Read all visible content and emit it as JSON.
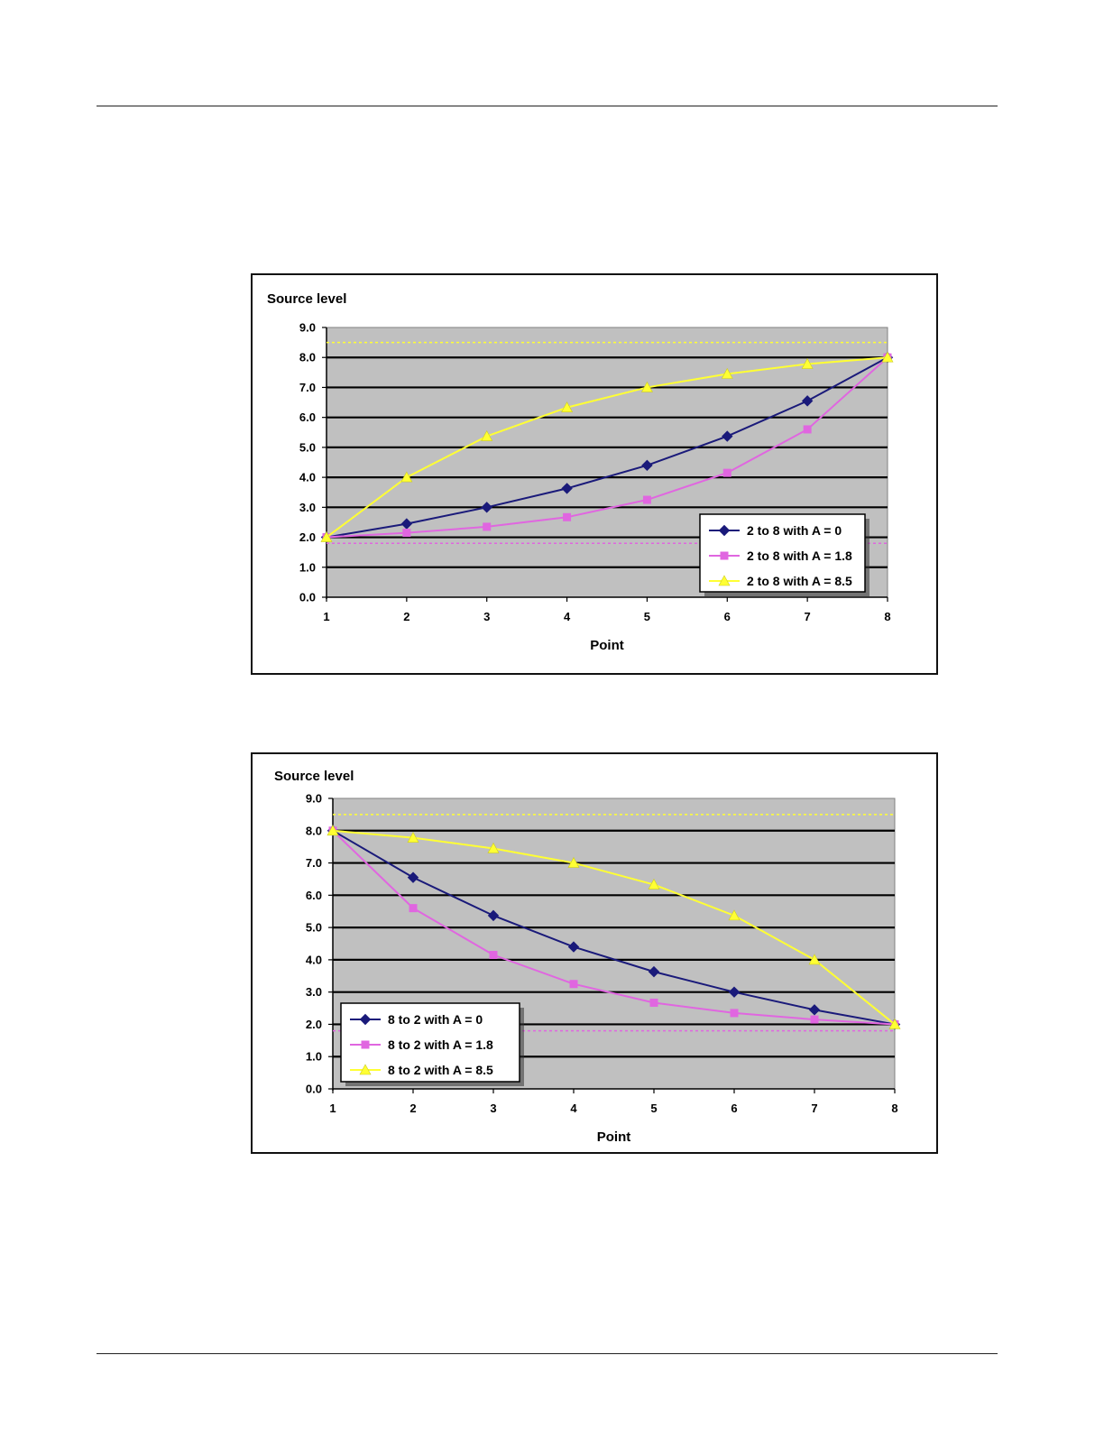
{
  "chart_data": [
    {
      "type": "line",
      "ylabel": "Source level",
      "xlabel": "Point",
      "x": [
        1,
        2,
        3,
        4,
        5,
        6,
        7,
        8
      ],
      "ylim": [
        0,
        9
      ],
      "yticks": [
        "0.0",
        "1.0",
        "2.0",
        "3.0",
        "4.0",
        "5.0",
        "6.0",
        "7.0",
        "8.0",
        "9.0"
      ],
      "grid": true,
      "legend": "bottom-right",
      "reference_lines": [
        {
          "y": 8.5,
          "color": "#ffff33"
        },
        {
          "y": 1.8,
          "color": "#e066e0"
        }
      ],
      "series": [
        {
          "name": "2 to 8 with A = 0",
          "color": "#1a1a7a",
          "marker": "diamond",
          "values": [
            2.0,
            2.45,
            3.0,
            3.63,
            4.4,
            5.37,
            6.55,
            8.0
          ]
        },
        {
          "name": "2 to 8 with A = 1.8",
          "color": "#e066e0",
          "marker": "square",
          "values": [
            2.0,
            2.15,
            2.35,
            2.67,
            3.25,
            4.15,
            5.6,
            8.0
          ]
        },
        {
          "name": "2 to 8 with A = 8.5",
          "color": "#ffff33",
          "marker": "triangle",
          "values": [
            2.0,
            4.0,
            5.37,
            6.33,
            7.0,
            7.45,
            7.78,
            8.0
          ]
        }
      ]
    },
    {
      "type": "line",
      "ylabel": "Source level",
      "xlabel": "Point",
      "x": [
        1,
        2,
        3,
        4,
        5,
        6,
        7,
        8
      ],
      "ylim": [
        0,
        9
      ],
      "yticks": [
        "0.0",
        "1.0",
        "2.0",
        "3.0",
        "4.0",
        "5.0",
        "6.0",
        "7.0",
        "8.0",
        "9.0"
      ],
      "grid": true,
      "legend": "bottom-left",
      "reference_lines": [
        {
          "y": 8.5,
          "color": "#ffff33"
        },
        {
          "y": 1.8,
          "color": "#e066e0"
        }
      ],
      "series": [
        {
          "name": "8 to 2 with A = 0",
          "color": "#1a1a7a",
          "marker": "diamond",
          "values": [
            8.0,
            6.55,
            5.37,
            4.4,
            3.63,
            3.0,
            2.45,
            2.0
          ]
        },
        {
          "name": "8 to 2 with A = 1.8",
          "color": "#e066e0",
          "marker": "square",
          "values": [
            8.0,
            5.6,
            4.15,
            3.25,
            2.67,
            2.35,
            2.15,
            2.0
          ]
        },
        {
          "name": "8 to 2 with A = 8.5",
          "color": "#ffff33",
          "marker": "triangle",
          "values": [
            8.0,
            7.78,
            7.45,
            7.0,
            6.33,
            5.37,
            4.0,
            2.0
          ]
        }
      ]
    }
  ]
}
